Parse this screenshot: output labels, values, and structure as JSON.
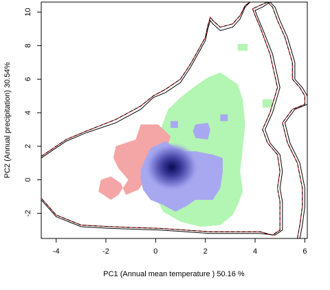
{
  "chart_data": {
    "type": "raster-contour",
    "xlabel": "PC1 (Annual mean temperature ) 50.16 %",
    "ylabel": "PC2 (Annual precipitation) 30.54%",
    "xlim": [
      -4.6,
      6.1
    ],
    "ylim": [
      -3.5,
      10.6
    ],
    "xticks": [
      -4,
      -2,
      0,
      2,
      4,
      6
    ],
    "yticks": [
      -2,
      0,
      2,
      4,
      6,
      8,
      10
    ],
    "grid": false,
    "colors": {
      "green": "#b3f5b3",
      "pink": "#f4a6a6",
      "blue_light": "#a8a8f0",
      "blue_dark": "#0a0a55",
      "outline_solid": "#000000",
      "outline_dashed": "#000000",
      "outline_red": "#cc0000"
    },
    "regions": {
      "green": [
        [
          0.3,
          3.4
        ],
        [
          0.5,
          4.2
        ],
        [
          1.0,
          4.9
        ],
        [
          1.6,
          5.6
        ],
        [
          2.1,
          6.1
        ],
        [
          2.6,
          6.4
        ],
        [
          3.3,
          5.7
        ],
        [
          3.5,
          4.8
        ],
        [
          3.6,
          3.3
        ],
        [
          3.5,
          1.9
        ],
        [
          3.4,
          0.5
        ],
        [
          3.5,
          -0.7
        ],
        [
          3.3,
          -1.5
        ],
        [
          3.1,
          -2.1
        ],
        [
          2.6,
          -2.7
        ],
        [
          1.8,
          -2.8
        ],
        [
          1.0,
          -2.5
        ],
        [
          0.3,
          -1.9
        ],
        [
          0.0,
          -1.0
        ],
        [
          0.0,
          0.5
        ],
        [
          0.2,
          2.0
        ],
        [
          0.2,
          3.0
        ]
      ],
      "green_spot_1": [
        [
          3.3,
          8.1
        ],
        [
          3.7,
          8.1
        ],
        [
          3.7,
          7.7
        ],
        [
          3.3,
          7.7
        ]
      ],
      "green_spot_2": [
        [
          4.3,
          4.8
        ],
        [
          4.7,
          4.8
        ],
        [
          4.7,
          4.3
        ],
        [
          4.3,
          4.3
        ]
      ],
      "pink": [
        [
          -1.6,
          2.0
        ],
        [
          -0.8,
          2.4
        ],
        [
          -0.6,
          3.3
        ],
        [
          0.1,
          3.3
        ],
        [
          0.6,
          2.6
        ],
        [
          0.4,
          1.6
        ],
        [
          0.0,
          0.8
        ],
        [
          -0.4,
          0.0
        ],
        [
          -0.7,
          -0.6
        ],
        [
          -1.2,
          -0.9
        ],
        [
          -1.4,
          -0.2
        ],
        [
          -1.8,
          0.2
        ],
        [
          -2.2,
          0.0
        ],
        [
          -2.3,
          -0.7
        ],
        [
          -1.8,
          -1.2
        ],
        [
          -1.5,
          -0.9
        ],
        [
          -1.1,
          0.0
        ],
        [
          -1.5,
          0.7
        ],
        [
          -1.7,
          1.3
        ]
      ],
      "blue": [
        [
          -0.2,
          1.9
        ],
        [
          0.4,
          2.3
        ],
        [
          0.7,
          2.0
        ],
        [
          1.0,
          1.7
        ],
        [
          1.6,
          1.7
        ],
        [
          2.3,
          1.5
        ],
        [
          2.7,
          1.3
        ],
        [
          2.7,
          0.5
        ],
        [
          2.6,
          -0.5
        ],
        [
          2.3,
          -1.2
        ],
        [
          1.6,
          -1.2
        ],
        [
          1.2,
          -1.6
        ],
        [
          0.8,
          -1.9
        ],
        [
          0.3,
          -1.5
        ],
        [
          -0.2,
          -1.2
        ],
        [
          -0.5,
          -0.6
        ],
        [
          -0.6,
          0.0
        ],
        [
          -0.6,
          0.6
        ],
        [
          -0.4,
          1.3
        ]
      ],
      "blue_spot_1": [
        [
          1.6,
          3.3
        ],
        [
          2.1,
          3.4
        ],
        [
          2.2,
          3.0
        ],
        [
          2.1,
          2.4
        ],
        [
          1.6,
          2.5
        ],
        [
          1.5,
          2.9
        ]
      ],
      "blue_spot_2": [
        [
          2.6,
          3.9
        ],
        [
          2.9,
          3.9
        ],
        [
          2.9,
          3.5
        ],
        [
          2.6,
          3.5
        ]
      ],
      "blue_spot_3": [
        [
          0.6,
          3.5
        ],
        [
          0.9,
          3.5
        ],
        [
          0.9,
          3.1
        ],
        [
          0.6,
          3.1
        ]
      ],
      "density_peak": [
        0.65,
        0.75
      ]
    },
    "outlines": {
      "outer_solid": [
        [
          -4.6,
          1.3
        ],
        [
          -4.2,
          1.7
        ],
        [
          -3.6,
          2.3
        ],
        [
          -2.8,
          2.8
        ],
        [
          -1.6,
          3.4
        ],
        [
          -0.6,
          4.2
        ],
        [
          -0.1,
          4.9
        ],
        [
          0.4,
          5.2
        ],
        [
          1.0,
          5.8
        ],
        [
          1.4,
          6.7
        ],
        [
          1.7,
          7.5
        ],
        [
          2.0,
          8.3
        ],
        [
          2.1,
          9.0
        ],
        [
          2.2,
          9.5
        ],
        [
          2.3,
          9.3
        ],
        [
          2.6,
          8.9
        ],
        [
          3.1,
          9.1
        ],
        [
          3.4,
          9.6
        ],
        [
          3.6,
          10.3
        ],
        [
          3.8,
          10.6
        ],
        [
          4.6,
          10.6
        ],
        [
          4.3,
          10.3
        ],
        [
          4.0,
          10.1
        ],
        [
          4.1,
          9.7
        ],
        [
          4.3,
          9.0
        ],
        [
          4.7,
          7.5
        ],
        [
          5.0,
          5.5
        ],
        [
          4.7,
          4.0
        ],
        [
          4.4,
          3.0
        ],
        [
          4.6,
          2.2
        ],
        [
          5.0,
          1.5
        ],
        [
          5.1,
          0.5
        ],
        [
          5.0,
          -0.5
        ],
        [
          5.1,
          -1.3
        ],
        [
          5.1,
          -2.2
        ],
        [
          5.1,
          -3.0
        ],
        [
          4.8,
          -3.3
        ],
        [
          4.2,
          -3.2
        ],
        [
          2.2,
          -3.2
        ],
        [
          0.2,
          -3.0
        ],
        [
          -1.8,
          -2.9
        ],
        [
          -3.0,
          -2.8
        ],
        [
          -4.0,
          -2.2
        ],
        [
          -4.6,
          -1.2
        ]
      ],
      "inner_dashed": [
        [
          -4.6,
          1.4
        ],
        [
          -4.2,
          1.8
        ],
        [
          -3.6,
          2.4
        ],
        [
          -2.8,
          2.9
        ],
        [
          -1.6,
          3.6
        ],
        [
          -0.6,
          4.4
        ],
        [
          -0.1,
          5.0
        ],
        [
          0.4,
          5.4
        ],
        [
          1.0,
          6.0
        ],
        [
          1.4,
          6.9
        ],
        [
          1.7,
          7.7
        ],
        [
          2.0,
          8.5
        ],
        [
          2.1,
          9.2
        ],
        [
          2.2,
          9.7
        ],
        [
          2.3,
          9.5
        ],
        [
          2.6,
          9.1
        ],
        [
          3.1,
          9.3
        ],
        [
          3.4,
          9.8
        ],
        [
          3.6,
          10.4
        ],
        [
          3.8,
          10.6
        ],
        [
          4.5,
          10.6
        ],
        [
          4.2,
          10.4
        ],
        [
          3.9,
          10.2
        ],
        [
          4.0,
          9.8
        ],
        [
          4.2,
          9.1
        ],
        [
          4.6,
          7.5
        ],
        [
          4.9,
          5.5
        ],
        [
          4.6,
          4.0
        ],
        [
          4.3,
          3.0
        ],
        [
          4.5,
          2.2
        ],
        [
          4.9,
          1.5
        ],
        [
          5.0,
          0.5
        ],
        [
          4.9,
          -0.5
        ],
        [
          5.0,
          -1.3
        ],
        [
          5.0,
          -2.2
        ],
        [
          5.0,
          -3.0
        ],
        [
          4.7,
          -3.3
        ],
        [
          4.2,
          -3.1
        ],
        [
          2.2,
          -3.1
        ],
        [
          0.2,
          -2.9
        ],
        [
          -1.8,
          -2.8
        ],
        [
          -3.0,
          -2.7
        ],
        [
          -4.0,
          -2.1
        ],
        [
          -4.6,
          -1.1
        ]
      ],
      "right_solid": [
        [
          4.6,
          10.6
        ],
        [
          4.8,
          10.3
        ],
        [
          5.0,
          9.5
        ],
        [
          5.3,
          8.5
        ],
        [
          5.6,
          7.0
        ],
        [
          5.6,
          6.0
        ],
        [
          5.9,
          5.5
        ],
        [
          6.1,
          5.0
        ],
        [
          6.1,
          4.5
        ],
        [
          5.6,
          4.2
        ],
        [
          5.2,
          3.4
        ],
        [
          5.4,
          2.2
        ],
        [
          5.8,
          1.0
        ],
        [
          6.0,
          -0.5
        ],
        [
          6.0,
          -1.6
        ],
        [
          5.9,
          -2.7
        ],
        [
          5.8,
          -3.5
        ]
      ],
      "right_dashed": [
        [
          4.5,
          10.6
        ],
        [
          4.7,
          10.3
        ],
        [
          4.9,
          9.5
        ],
        [
          5.2,
          8.5
        ],
        [
          5.5,
          7.0
        ],
        [
          5.5,
          6.0
        ],
        [
          5.8,
          5.5
        ],
        [
          6.0,
          5.0
        ],
        [
          6.0,
          4.5
        ],
        [
          5.5,
          4.2
        ],
        [
          5.1,
          3.4
        ],
        [
          5.3,
          2.2
        ],
        [
          5.7,
          1.0
        ],
        [
          5.9,
          -0.5
        ],
        [
          5.9,
          -1.6
        ],
        [
          5.8,
          -2.7
        ],
        [
          5.7,
          -3.5
        ]
      ]
    }
  }
}
